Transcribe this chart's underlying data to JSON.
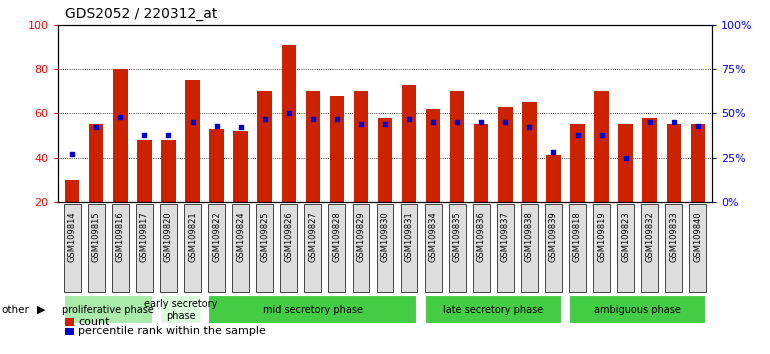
{
  "title": "GDS2052 / 220312_at",
  "samples": [
    "GSM109814",
    "GSM109815",
    "GSM109816",
    "GSM109817",
    "GSM109820",
    "GSM109821",
    "GSM109822",
    "GSM109824",
    "GSM109825",
    "GSM109826",
    "GSM109827",
    "GSM109828",
    "GSM109829",
    "GSM109830",
    "GSM109831",
    "GSM109834",
    "GSM109835",
    "GSM109836",
    "GSM109837",
    "GSM109838",
    "GSM109839",
    "GSM109818",
    "GSM109819",
    "GSM109823",
    "GSM109832",
    "GSM109833",
    "GSM109840"
  ],
  "counts": [
    30,
    55,
    80,
    48,
    48,
    75,
    53,
    52,
    70,
    91,
    70,
    68,
    70,
    58,
    73,
    62,
    70,
    55,
    63,
    65,
    41,
    55,
    70,
    55,
    58,
    55,
    55
  ],
  "percentiles": [
    27,
    42,
    48,
    38,
    38,
    45,
    43,
    42,
    47,
    50,
    47,
    47,
    44,
    44,
    47,
    45,
    45,
    45,
    45,
    42,
    28,
    38,
    38,
    25,
    45,
    45,
    43
  ],
  "phases": [
    {
      "label": "proliferative phase",
      "start": 0,
      "end": 4,
      "color": "#aaeaaa"
    },
    {
      "label": "early secretory\nphase",
      "start": 4,
      "end": 6,
      "color": "#ddfadd"
    },
    {
      "label": "mid secretory phase",
      "start": 6,
      "end": 15,
      "color": "#44cc44"
    },
    {
      "label": "late secretory phase",
      "start": 15,
      "end": 21,
      "color": "#44cc44"
    },
    {
      "label": "ambiguous phase",
      "start": 21,
      "end": 27,
      "color": "#44cc44"
    }
  ],
  "bar_color": "#CC2200",
  "dot_color": "#0000CC",
  "ylim_left": [
    20,
    100
  ],
  "ylim_right": [
    0,
    100
  ],
  "ylabel_left_ticks": [
    20,
    40,
    60,
    80,
    100
  ],
  "ylabel_right_ticks": [
    0,
    25,
    50,
    75,
    100
  ],
  "plot_bg": "#ffffff",
  "xtick_bg": "#cccccc",
  "title_fontsize": 10,
  "tick_fontsize": 6,
  "phase_fontsize": 7,
  "legend_fontsize": 8
}
